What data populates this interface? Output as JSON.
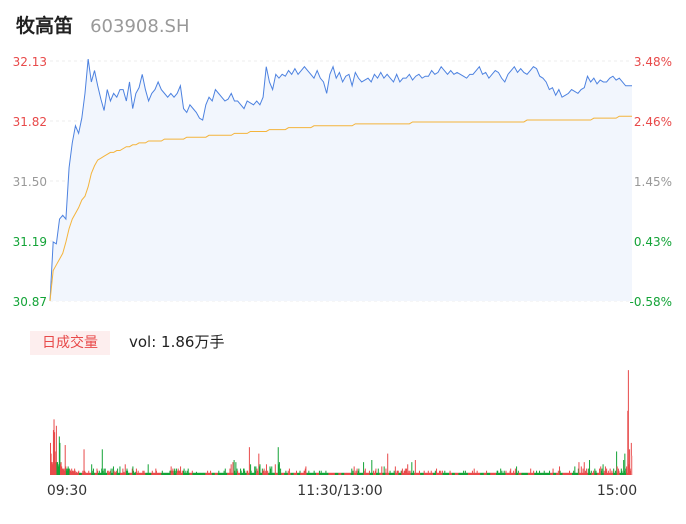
{
  "header": {
    "name": "牧高笛",
    "code": "603908.SH"
  },
  "volume": {
    "badge": "日成交量",
    "label": "vol: 1.86万手"
  },
  "colors": {
    "up": "#e84a4a",
    "down": "#13a337",
    "neutral": "#999999",
    "price_line": "#4d82e0",
    "avg_line": "#f4b43c",
    "area": "#f2f6fd"
  },
  "chart_data": [
    {
      "type": "line",
      "left_axis": [
        "32.13",
        "31.82",
        "31.50",
        "31.19",
        "30.87"
      ],
      "right_axis": [
        "3.48%",
        "2.46%",
        "1.45%",
        "0.43%",
        "-0.58%"
      ],
      "ylim": [
        30.87,
        32.13
      ],
      "series": [
        {
          "key": "price",
          "values": [
            30.87,
            31.18,
            31.17,
            31.3,
            31.32,
            31.3,
            31.57,
            31.7,
            31.79,
            31.75,
            31.83,
            31.96,
            32.14,
            32.02,
            32.08,
            32.0,
            31.93,
            31.87,
            31.98,
            31.92,
            31.96,
            31.94,
            31.98,
            31.98,
            31.92,
            32.02,
            31.88,
            31.96,
            31.99,
            32.06,
            31.98,
            31.92,
            31.96,
            31.98,
            32.02,
            31.98,
            31.96,
            31.94,
            31.96,
            31.94,
            31.96,
            32.0,
            31.88,
            31.86,
            31.9,
            31.88,
            31.86,
            31.83,
            31.82,
            31.9,
            31.94,
            31.92,
            31.98,
            31.96,
            31.94,
            31.92,
            31.93,
            31.96,
            31.92,
            31.92,
            31.9,
            31.88,
            31.92,
            31.91,
            31.9,
            31.92,
            31.9,
            31.94,
            32.1,
            32.02,
            31.98,
            32.06,
            32.04,
            32.06,
            32.05,
            32.08,
            32.06,
            32.09,
            32.06,
            32.08,
            32.1,
            32.08,
            32.06,
            32.04,
            32.08,
            32.04,
            32.02,
            31.96,
            32.06,
            32.1,
            32.04,
            32.07,
            32.02,
            32.05,
            32.06,
            32.0,
            32.07,
            32.04,
            32.02,
            32.03,
            32.04,
            32.02,
            32.06,
            32.04,
            32.07,
            32.04,
            32.06,
            32.04,
            32.02,
            32.06,
            32.02,
            32.04,
            32.04,
            32.06,
            32.03,
            32.05,
            32.06,
            32.04,
            32.05,
            32.05,
            32.08,
            32.06,
            32.07,
            32.1,
            32.08,
            32.06,
            32.08,
            32.06,
            32.07,
            32.06,
            32.05,
            32.04,
            32.06,
            32.06,
            32.08,
            32.1,
            32.06,
            32.07,
            32.04,
            32.06,
            32.08,
            32.07,
            32.04,
            32.02,
            32.06,
            32.08,
            32.1,
            32.07,
            32.09,
            32.07,
            32.06,
            32.08,
            32.1,
            32.09,
            32.05,
            32.04,
            32.02,
            31.98,
            31.99,
            31.95,
            31.98,
            31.94,
            31.95,
            31.96,
            31.98,
            31.97,
            31.96,
            31.98,
            31.99,
            32.05,
            32.02,
            32.04,
            32.01,
            32.03,
            32.02,
            32.02,
            32.04,
            32.05,
            32.03,
            32.04,
            32.02,
            32.0,
            32.0,
            32.0
          ]
        },
        {
          "key": "avg",
          "values": [
            30.87,
            31.03,
            31.06,
            31.09,
            31.12,
            31.18,
            31.25,
            31.3,
            31.33,
            31.36,
            31.4,
            31.42,
            31.47,
            31.54,
            31.58,
            31.61,
            31.62,
            31.63,
            31.64,
            31.65,
            31.65,
            31.66,
            31.66,
            31.67,
            31.68,
            31.68,
            31.69,
            31.69,
            31.7,
            31.7,
            31.7,
            31.71,
            31.71,
            31.71,
            31.71,
            31.71,
            31.72,
            31.72,
            31.72,
            31.72,
            31.72,
            31.72,
            31.72,
            31.73,
            31.73,
            31.73,
            31.73,
            31.73,
            31.73,
            31.73,
            31.74,
            31.74,
            31.74,
            31.74,
            31.74,
            31.74,
            31.74,
            31.74,
            31.75,
            31.75,
            31.75,
            31.75,
            31.75,
            31.76,
            31.76,
            31.76,
            31.76,
            31.76,
            31.76,
            31.77,
            31.77,
            31.77,
            31.77,
            31.77,
            31.77,
            31.78,
            31.78,
            31.78,
            31.78,
            31.78,
            31.78,
            31.78,
            31.78,
            31.79,
            31.79,
            31.79,
            31.79,
            31.79,
            31.79,
            31.79,
            31.79,
            31.79,
            31.79,
            31.79,
            31.79,
            31.79,
            31.8,
            31.8,
            31.8,
            31.8,
            31.8,
            31.8,
            31.8,
            31.8,
            31.8,
            31.8,
            31.8,
            31.8,
            31.8,
            31.8,
            31.8,
            31.8,
            31.8,
            31.8,
            31.81,
            31.81,
            31.81,
            31.81,
            31.81,
            31.81,
            31.81,
            31.81,
            31.81,
            31.81,
            31.81,
            31.81,
            31.81,
            31.81,
            31.81,
            31.81,
            31.81,
            31.81,
            31.81,
            31.81,
            31.81,
            31.81,
            31.81,
            31.81,
            31.81,
            31.81,
            31.81,
            31.81,
            31.81,
            31.81,
            31.81,
            31.81,
            31.81,
            31.81,
            31.81,
            31.81,
            31.82,
            31.82,
            31.82,
            31.82,
            31.82,
            31.82,
            31.82,
            31.82,
            31.82,
            31.82,
            31.82,
            31.82,
            31.82,
            31.82,
            31.82,
            31.82,
            31.82,
            31.82,
            31.82,
            31.82,
            31.82,
            31.83,
            31.83,
            31.83,
            31.83,
            31.83,
            31.83,
            31.83,
            31.83,
            31.84,
            31.84,
            31.84,
            31.84,
            31.84
          ]
        }
      ]
    },
    {
      "type": "bar",
      "x_ticks": [
        "09:30",
        "11:30/13:00",
        "15:00"
      ],
      "ylim": [
        0,
        100
      ],
      "values": [
        30,
        20,
        12,
        12,
        10,
        42,
        52,
        40,
        22,
        12,
        46,
        12,
        12,
        10,
        8,
        36,
        30,
        10,
        12,
        8,
        6,
        6,
        5,
        6,
        4,
        28,
        8,
        6,
        4,
        6,
        8,
        6,
        6,
        5,
        4,
        3,
        6,
        4,
        4,
        3,
        4,
        6,
        4,
        2,
        3,
        2,
        2,
        3,
        4,
        2,
        2,
        2,
        2,
        2,
        2,
        4,
        2,
        24,
        4,
        3,
        2,
        2,
        2,
        2,
        2,
        4,
        2,
        2,
        2,
        2,
        10,
        2,
        4,
        6,
        2,
        2,
        2,
        2,
        2,
        6,
        4,
        2,
        2,
        4,
        2,
        2,
        2,
        6,
        24,
        4,
        2,
        6,
        2,
        6,
        2,
        2,
        2,
        4,
        2,
        4,
        3,
        2,
        4,
        6,
        2,
        2,
        6,
        8,
        4,
        2,
        3,
        2,
        4,
        2,
        6,
        2,
        2,
        2,
        8,
        2,
        2,
        2,
        2,
        6,
        2,
        3,
        2,
        10,
        2,
        4,
        6,
        4,
        2,
        2,
        2,
        2,
        2,
        2,
        2,
        6,
        8,
        4,
        2,
        2,
        3,
        2,
        6,
        2,
        2,
        4,
        2,
        2,
        2,
        2,
        2,
        2,
        2,
        4,
        2,
        4,
        2,
        2,
        2,
        2,
        2,
        2,
        10,
        2,
        2,
        2,
        2,
        2,
        2,
        4,
        2,
        2,
        2,
        2,
        2,
        6,
        4,
        2,
        2,
        2,
        2,
        2,
        2,
        2,
        2,
        2,
        4,
        2,
        2,
        2,
        2,
        2,
        2,
        2,
        2,
        2,
        2,
        2,
        2,
        4,
        4,
        8,
        4,
        4,
        6,
        2,
        4,
        6,
        2,
        4,
        6,
        2,
        4,
        6,
        4,
        4,
        4,
        8,
        2,
        2,
        4,
        2,
        4,
        6,
        2,
        2,
        4,
        2,
        2,
        4,
        6,
        2,
        2,
        2,
        2,
        2,
        2,
        4,
        2,
        2,
        2,
        2,
        2,
        2,
        3,
        2,
        2,
        2,
        2,
        2,
        2,
        2,
        2,
        2,
        2,
        2,
        2,
        2,
        2,
        2,
        2,
        2,
        2,
        4,
        2,
        2,
        2,
        2,
        4,
        2,
        2,
        2,
        2,
        2,
        2,
        2,
        2,
        2,
        2,
        2,
        2,
        2,
        4,
        2,
        2,
        2,
        2,
        2,
        2,
        2,
        2,
        4,
        2,
        6,
        2,
        2,
        2,
        2,
        2,
        2,
        2,
        6,
        2,
        10,
        2,
        2,
        12,
        2,
        14,
        4,
        2,
        12,
        2,
        6,
        4,
        2,
        2,
        2,
        2,
        6,
        4,
        2,
        2,
        2,
        6,
        6,
        4,
        2,
        2,
        2,
        4,
        4,
        2,
        2,
        26,
        2,
        10,
        4,
        2,
        2,
        2,
        2,
        2,
        8,
        4,
        8,
        2,
        6,
        4,
        2,
        20,
        8,
        10,
        2,
        2,
        2,
        6,
        4,
        4,
        6,
        2,
        4,
        2,
        10,
        2,
        4,
        2,
        2,
        2,
        8,
        6,
        2,
        8,
        2,
        2,
        2,
        2,
        2,
        10,
        2,
        2,
        2,
        2,
        26,
        10,
        12,
        2,
        6,
        2,
        2,
        2,
        2,
        2,
        2,
        2,
        2,
        4,
        2,
        2,
        2,
        4,
        2,
        6,
        2,
        2,
        2,
        2,
        2,
        2,
        2,
        2,
        2,
        2,
        2,
        4,
        2,
        2,
        2,
        2,
        2,
        4,
        2,
        2,
        2,
        2,
        2,
        2,
        4,
        4,
        6,
        8,
        2,
        2,
        2,
        2,
        4,
        2,
        2,
        2,
        2,
        2,
        2,
        2,
        2,
        4,
        2,
        2,
        2,
        2,
        2,
        2,
        2,
        2,
        4,
        2,
        2,
        4,
        2,
        2,
        2,
        2,
        2,
        2,
        2,
        4,
        2,
        2,
        2,
        2,
        2,
        2,
        2,
        2,
        2,
        2,
        2,
        2,
        2,
        2,
        2,
        2,
        2,
        2,
        2,
        2,
        2,
        2,
        2,
        2,
        2,
        2,
        2,
        2,
        2,
        2,
        2,
        2,
        2,
        2,
        2,
        2,
        2,
        2,
        2,
        2,
        2,
        2,
        2,
        6,
        2,
        4,
        2,
        8,
        2,
        2,
        4,
        2,
        6,
        2,
        4,
        6,
        2,
        2,
        2,
        2,
        2,
        2,
        2,
        12,
        2,
        4,
        6,
        2,
        2,
        2,
        2,
        2,
        2,
        4,
        2,
        2,
        2,
        14,
        2,
        2,
        4,
        2,
        2,
        4,
        6,
        2,
        2,
        2,
        6,
        2,
        2,
        2,
        2,
        2,
        8,
        2,
        2,
        2,
        8,
        2,
        2,
        6,
        2,
        2,
        20,
        2,
        2,
        2,
        4,
        2,
        2,
        2,
        2,
        2,
        2,
        4,
        2,
        8,
        2,
        2,
        4,
        4,
        4,
        2,
        2,
        2,
        2,
        4,
        4,
        6,
        2,
        2,
        4,
        4,
        6,
        4,
        6,
        2,
        10,
        2,
        4,
        2,
        4,
        2,
        2,
        12,
        2,
        2,
        4,
        2,
        2,
        14,
        2,
        2,
        2,
        2,
        2,
        2,
        4,
        2,
        2,
        2,
        2,
        2,
        2,
        2,
        4,
        2,
        2,
        2,
        2,
        2,
        2,
        4,
        2,
        2,
        2,
        2,
        4,
        2,
        2,
        2,
        2,
        2,
        2,
        4,
        2,
        6,
        2,
        2,
        2,
        2,
        4,
        2,
        4,
        2,
        2,
        4,
        2,
        2,
        2,
        4,
        2,
        2,
        2,
        2,
        2,
        2,
        2,
        2,
        4,
        2,
        2,
        2,
        2,
        2,
        2,
        2,
        2,
        2,
        2,
        2,
        2,
        2,
        2,
        2,
        2,
        2,
        2,
        2,
        2,
        2,
        2,
        4,
        2,
        2,
        4,
        2,
        2,
        2,
        2,
        2,
        2,
        2,
        2,
        2,
        2,
        2,
        4,
        2,
        2,
        6,
        2,
        2,
        2,
        2,
        4,
        2,
        2,
        2,
        2,
        2,
        2,
        2,
        2,
        2,
        2,
        2,
        2,
        2,
        2,
        2,
        4,
        2,
        2,
        2,
        2,
        2,
        2,
        2,
        2,
        2,
        2,
        2,
        2,
        2,
        2,
        2,
        2,
        2,
        4,
        4,
        2,
        2,
        2,
        2,
        6,
        2,
        4,
        2,
        2,
        2,
        4,
        2,
        2,
        4,
        2,
        2,
        2,
        2,
        2,
        2,
        4,
        6,
        2,
        2,
        2,
        2,
        4,
        2,
        2,
        6,
        2,
        8,
        2,
        2,
        4,
        2,
        2,
        2,
        2,
        2,
        2,
        2,
        2,
        2,
        2,
        2,
        2,
        2,
        2,
        2,
        2,
        2,
        2,
        2,
        2,
        6,
        2,
        2,
        2,
        2,
        4,
        2,
        2,
        2,
        2,
        4,
        2,
        2,
        2,
        2,
        4,
        2,
        2,
        2,
        2,
        2,
        2,
        2,
        4,
        2,
        2,
        2,
        2,
        2,
        2,
        2,
        2,
        4,
        2,
        2,
        2,
        2,
        2,
        6,
        2,
        2,
        2,
        2,
        2,
        2,
        2,
        2,
        4,
        2,
        8,
        4,
        2,
        2,
        2,
        2,
        2,
        2,
        2,
        2,
        2,
        2,
        2,
        2,
        2,
        2,
        2,
        4,
        2,
        2,
        2,
        2,
        2,
        2,
        4,
        2,
        8,
        2,
        2,
        2,
        2,
        2,
        6,
        12,
        2,
        2,
        2,
        8,
        2,
        2,
        6,
        2,
        12,
        2,
        4,
        2,
        6,
        2,
        2,
        6,
        2,
        14,
        2,
        2,
        4,
        2,
        2,
        2,
        4,
        2,
        6,
        2,
        4,
        2,
        2,
        2,
        2,
        2,
        6,
        2,
        8,
        4,
        6,
        2,
        10,
        2,
        4,
        2,
        8,
        4,
        6,
        2,
        2,
        4,
        2,
        2,
        6,
        2,
        2,
        4,
        2,
        2,
        6,
        2,
        2,
        4,
        2,
        22,
        8,
        2,
        6,
        4,
        2,
        2,
        2,
        6,
        4,
        2,
        2,
        14,
        4,
        20,
        2,
        6,
        8,
        2,
        60,
        98,
        10,
        24,
        6,
        4,
        30,
        18
      ],
      "colors": [
        "#e84a4a"
      ]
    }
  ]
}
